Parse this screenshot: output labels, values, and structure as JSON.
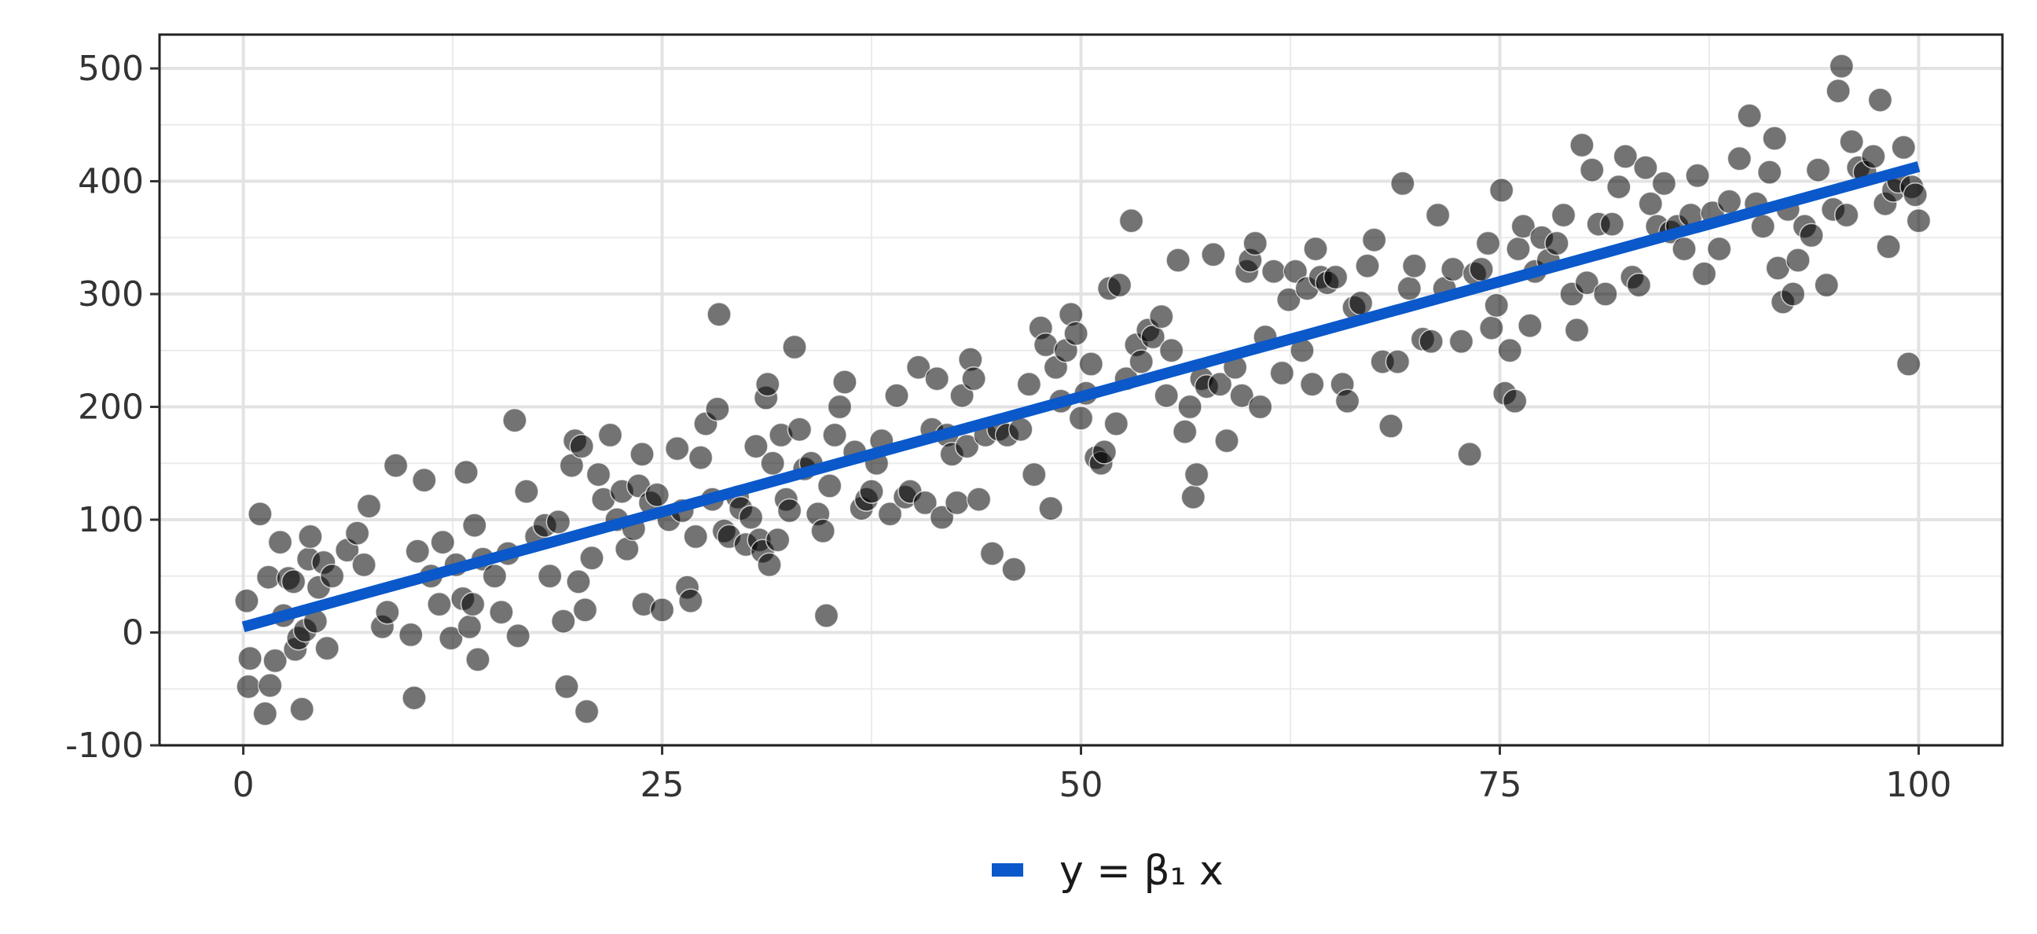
{
  "chart_data": {
    "type": "scatter",
    "title": "",
    "xlabel": "",
    "ylabel": "",
    "xlim": [
      -5,
      105
    ],
    "ylim": [
      -100,
      530
    ],
    "x_ticks": [
      0,
      25,
      50,
      75,
      100
    ],
    "y_ticks": [
      -100,
      0,
      100,
      200,
      300,
      400,
      500
    ],
    "x_tick_labels": [
      "0",
      "25",
      "50",
      "75",
      "100"
    ],
    "y_tick_labels": [
      "-100",
      "0",
      "100",
      "200",
      "300",
      "400",
      "500"
    ],
    "grid": true,
    "legend_position": "bottom",
    "point_color": "#000000",
    "line_color": "#0A58CA",
    "legend": {
      "label": "y = β₁ x"
    },
    "fit_line": {
      "name": "y = β₁ x",
      "x": [
        0,
        100
      ],
      "y": [
        5,
        413
      ]
    },
    "points": [
      [
        0.2,
        28
      ],
      [
        0.3,
        -48
      ],
      [
        0.4,
        -23
      ],
      [
        1.0,
        105
      ],
      [
        1.3,
        -72
      ],
      [
        1.5,
        49
      ],
      [
        1.6,
        -47
      ],
      [
        1.9,
        -25
      ],
      [
        2.2,
        80
      ],
      [
        2.4,
        15
      ],
      [
        2.7,
        48
      ],
      [
        3.0,
        45
      ],
      [
        3.1,
        -15
      ],
      [
        3.3,
        -5
      ],
      [
        3.5,
        -68
      ],
      [
        3.7,
        2
      ],
      [
        3.9,
        65
      ],
      [
        4.0,
        85
      ],
      [
        4.3,
        10
      ],
      [
        4.5,
        40
      ],
      [
        4.8,
        62
      ],
      [
        5.0,
        -14
      ],
      [
        5.3,
        50
      ],
      [
        6.2,
        73
      ],
      [
        6.8,
        88
      ],
      [
        7.2,
        60
      ],
      [
        7.5,
        112
      ],
      [
        8.3,
        5
      ],
      [
        8.6,
        18
      ],
      [
        9.1,
        148
      ],
      [
        10.0,
        -2
      ],
      [
        10.2,
        -58
      ],
      [
        10.4,
        72
      ],
      [
        10.8,
        135
      ],
      [
        11.2,
        50
      ],
      [
        11.7,
        25
      ],
      [
        11.9,
        80
      ],
      [
        12.4,
        -5
      ],
      [
        12.7,
        60
      ],
      [
        13.1,
        30
      ],
      [
        13.3,
        142
      ],
      [
        13.5,
        5
      ],
      [
        13.7,
        25
      ],
      [
        13.8,
        95
      ],
      [
        14.0,
        -24
      ],
      [
        14.3,
        65
      ],
      [
        15.0,
        50
      ],
      [
        15.4,
        18
      ],
      [
        15.8,
        70
      ],
      [
        16.2,
        188
      ],
      [
        16.4,
        -3
      ],
      [
        16.9,
        125
      ],
      [
        17.5,
        85
      ],
      [
        18.0,
        95
      ],
      [
        18.3,
        50
      ],
      [
        18.8,
        98
      ],
      [
        19.1,
        10
      ],
      [
        19.3,
        -48
      ],
      [
        19.6,
        148
      ],
      [
        19.8,
        170
      ],
      [
        20.0,
        45
      ],
      [
        20.2,
        165
      ],
      [
        20.5,
        -70
      ],
      [
        20.4,
        20
      ],
      [
        20.8,
        66
      ],
      [
        21.2,
        140
      ],
      [
        21.5,
        118
      ],
      [
        21.9,
        175
      ],
      [
        22.3,
        100
      ],
      [
        22.6,
        125
      ],
      [
        22.9,
        74
      ],
      [
        23.3,
        92
      ],
      [
        23.6,
        130
      ],
      [
        23.8,
        158
      ],
      [
        23.9,
        25
      ],
      [
        24.3,
        115
      ],
      [
        24.7,
        122
      ],
      [
        25.0,
        20
      ],
      [
        25.4,
        100
      ],
      [
        25.9,
        163
      ],
      [
        26.2,
        108
      ],
      [
        26.5,
        40
      ],
      [
        26.7,
        28
      ],
      [
        27.0,
        85
      ],
      [
        27.3,
        155
      ],
      [
        27.6,
        185
      ],
      [
        28.0,
        118
      ],
      [
        28.3,
        198
      ],
      [
        28.4,
        282
      ],
      [
        28.7,
        90
      ],
      [
        29.0,
        85
      ],
      [
        29.5,
        120
      ],
      [
        29.7,
        110
      ],
      [
        30.0,
        78
      ],
      [
        30.3,
        102
      ],
      [
        30.6,
        165
      ],
      [
        30.8,
        82
      ],
      [
        31.0,
        72
      ],
      [
        31.2,
        208
      ],
      [
        31.3,
        220
      ],
      [
        31.4,
        60
      ],
      [
        31.6,
        150
      ],
      [
        31.9,
        82
      ],
      [
        32.1,
        175
      ],
      [
        32.4,
        118
      ],
      [
        32.6,
        108
      ],
      [
        32.9,
        253
      ],
      [
        33.2,
        180
      ],
      [
        33.5,
        145
      ],
      [
        33.9,
        150
      ],
      [
        34.3,
        105
      ],
      [
        34.6,
        90
      ],
      [
        34.8,
        15
      ],
      [
        35.0,
        130
      ],
      [
        35.3,
        175
      ],
      [
        35.6,
        200
      ],
      [
        35.9,
        222
      ],
      [
        36.5,
        160
      ],
      [
        36.9,
        110
      ],
      [
        37.2,
        118
      ],
      [
        37.5,
        125
      ],
      [
        37.8,
        150
      ],
      [
        38.1,
        170
      ],
      [
        38.6,
        105
      ],
      [
        39.0,
        210
      ],
      [
        39.5,
        120
      ],
      [
        39.8,
        125
      ],
      [
        40.3,
        235
      ],
      [
        40.7,
        115
      ],
      [
        41.1,
        180
      ],
      [
        41.4,
        225
      ],
      [
        41.7,
        102
      ],
      [
        42.0,
        175
      ],
      [
        42.3,
        158
      ],
      [
        42.6,
        115
      ],
      [
        42.9,
        210
      ],
      [
        43.2,
        165
      ],
      [
        43.4,
        242
      ],
      [
        43.6,
        225
      ],
      [
        43.9,
        118
      ],
      [
        44.3,
        175
      ],
      [
        44.7,
        70
      ],
      [
        45.1,
        180
      ],
      [
        45.6,
        175
      ],
      [
        46.0,
        56
      ],
      [
        46.4,
        180
      ],
      [
        46.9,
        220
      ],
      [
        47.2,
        140
      ],
      [
        47.6,
        270
      ],
      [
        47.9,
        255
      ],
      [
        48.2,
        110
      ],
      [
        48.5,
        235
      ],
      [
        48.8,
        205
      ],
      [
        49.1,
        250
      ],
      [
        49.4,
        282
      ],
      [
        49.7,
        265
      ],
      [
        50.0,
        190
      ],
      [
        50.3,
        212
      ],
      [
        50.6,
        238
      ],
      [
        50.9,
        155
      ],
      [
        51.2,
        150
      ],
      [
        51.4,
        160
      ],
      [
        51.7,
        305
      ],
      [
        52.1,
        185
      ],
      [
        52.3,
        308
      ],
      [
        52.7,
        225
      ],
      [
        53.0,
        365
      ],
      [
        53.3,
        255
      ],
      [
        53.6,
        240
      ],
      [
        54.0,
        268
      ],
      [
        54.3,
        262
      ],
      [
        54.8,
        280
      ],
      [
        55.1,
        210
      ],
      [
        55.4,
        250
      ],
      [
        55.8,
        330
      ],
      [
        56.2,
        178
      ],
      [
        56.5,
        200
      ],
      [
        56.7,
        120
      ],
      [
        56.9,
        140
      ],
      [
        57.2,
        225
      ],
      [
        57.5,
        218
      ],
      [
        57.9,
        335
      ],
      [
        58.3,
        220
      ],
      [
        58.7,
        170
      ],
      [
        59.2,
        235
      ],
      [
        59.6,
        210
      ],
      [
        59.9,
        320
      ],
      [
        60.1,
        330
      ],
      [
        60.4,
        345
      ],
      [
        60.7,
        200
      ],
      [
        61.0,
        262
      ],
      [
        61.5,
        320
      ],
      [
        62.0,
        230
      ],
      [
        62.4,
        295
      ],
      [
        62.8,
        320
      ],
      [
        63.2,
        250
      ],
      [
        63.5,
        305
      ],
      [
        63.8,
        220
      ],
      [
        64.0,
        340
      ],
      [
        64.3,
        315
      ],
      [
        64.7,
        310
      ],
      [
        65.2,
        315
      ],
      [
        65.6,
        220
      ],
      [
        65.9,
        205
      ],
      [
        66.3,
        288
      ],
      [
        66.7,
        292
      ],
      [
        67.1,
        325
      ],
      [
        67.5,
        348
      ],
      [
        68.0,
        240
      ],
      [
        68.5,
        183
      ],
      [
        68.9,
        240
      ],
      [
        69.2,
        398
      ],
      [
        69.6,
        305
      ],
      [
        69.9,
        325
      ],
      [
        70.4,
        260
      ],
      [
        70.9,
        258
      ],
      [
        71.3,
        370
      ],
      [
        71.7,
        305
      ],
      [
        72.2,
        322
      ],
      [
        72.7,
        258
      ],
      [
        73.2,
        158
      ],
      [
        73.5,
        318
      ],
      [
        73.9,
        322
      ],
      [
        74.3,
        345
      ],
      [
        74.5,
        270
      ],
      [
        74.8,
        290
      ],
      [
        75.1,
        392
      ],
      [
        75.3,
        212
      ],
      [
        75.6,
        250
      ],
      [
        75.9,
        205
      ],
      [
        76.1,
        340
      ],
      [
        76.4,
        360
      ],
      [
        76.8,
        272
      ],
      [
        77.1,
        320
      ],
      [
        77.5,
        350
      ],
      [
        77.9,
        330
      ],
      [
        78.4,
        345
      ],
      [
        78.8,
        370
      ],
      [
        79.3,
        300
      ],
      [
        79.6,
        268
      ],
      [
        79.9,
        432
      ],
      [
        80.2,
        310
      ],
      [
        80.5,
        410
      ],
      [
        80.9,
        362
      ],
      [
        81.3,
        300
      ],
      [
        81.7,
        362
      ],
      [
        82.1,
        395
      ],
      [
        82.5,
        422
      ],
      [
        82.9,
        315
      ],
      [
        83.3,
        308
      ],
      [
        83.7,
        412
      ],
      [
        84.0,
        380
      ],
      [
        84.4,
        360
      ],
      [
        84.8,
        398
      ],
      [
        85.2,
        355
      ],
      [
        85.6,
        360
      ],
      [
        86.0,
        340
      ],
      [
        86.4,
        370
      ],
      [
        86.8,
        405
      ],
      [
        87.2,
        318
      ],
      [
        87.7,
        372
      ],
      [
        88.1,
        340
      ],
      [
        88.7,
        382
      ],
      [
        89.3,
        420
      ],
      [
        89.9,
        458
      ],
      [
        90.3,
        380
      ],
      [
        90.7,
        360
      ],
      [
        91.1,
        408
      ],
      [
        91.4,
        438
      ],
      [
        91.6,
        323
      ],
      [
        91.9,
        293
      ],
      [
        92.2,
        375
      ],
      [
        92.5,
        300
      ],
      [
        92.8,
        330
      ],
      [
        93.2,
        360
      ],
      [
        93.6,
        352
      ],
      [
        94.0,
        410
      ],
      [
        94.5,
        308
      ],
      [
        94.9,
        375
      ],
      [
        95.2,
        480
      ],
      [
        95.4,
        502
      ],
      [
        95.7,
        370
      ],
      [
        96.0,
        435
      ],
      [
        96.4,
        412
      ],
      [
        96.8,
        408
      ],
      [
        97.3,
        422
      ],
      [
        97.7,
        472
      ],
      [
        98.0,
        380
      ],
      [
        98.2,
        342
      ],
      [
        98.5,
        392
      ],
      [
        98.8,
        400
      ],
      [
        99.1,
        430
      ],
      [
        99.4,
        238
      ],
      [
        99.6,
        395
      ],
      [
        99.8,
        388
      ],
      [
        100.0,
        365
      ]
    ]
  }
}
